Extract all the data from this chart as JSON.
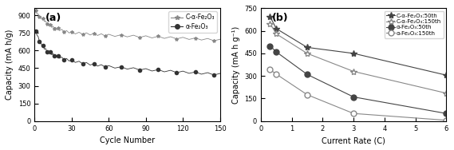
{
  "panel_a": {
    "title": "(a)",
    "xlabel": "Cycle Number",
    "ylabel": "Capacity (mA h/g)",
    "xlim": [
      0,
      150
    ],
    "ylim": [
      0,
      960
    ],
    "yticks": [
      0,
      150,
      300,
      450,
      600,
      750,
      900
    ],
    "xticks": [
      0,
      30,
      60,
      90,
      120,
      150
    ],
    "C_alpha": {
      "label": "C-α-Fe₂O₃",
      "color": "#888888",
      "marker": "*",
      "markersize": 3,
      "x": [
        1,
        2,
        3,
        4,
        5,
        6,
        7,
        8,
        9,
        10,
        11,
        12,
        13,
        14,
        15,
        16,
        17,
        18,
        19,
        20,
        22,
        24,
        26,
        28,
        30,
        33,
        36,
        39,
        42,
        45,
        48,
        51,
        54,
        57,
        60,
        65,
        70,
        75,
        80,
        85,
        90,
        95,
        100,
        105,
        110,
        115,
        120,
        125,
        130,
        135,
        140,
        145,
        150
      ],
      "y": [
        935,
        920,
        905,
        895,
        885,
        875,
        865,
        855,
        845,
        835,
        830,
        820,
        810,
        805,
        800,
        795,
        790,
        785,
        782,
        778,
        773,
        768,
        762,
        758,
        754,
        750,
        748,
        746,
        743,
        741,
        739,
        737,
        735,
        733,
        731,
        729,
        727,
        725,
        723,
        720,
        718,
        716,
        714,
        712,
        710,
        708,
        705,
        703,
        700,
        698,
        695,
        692,
        688
      ]
    },
    "alpha": {
      "label": "α-Fe₂O₃",
      "color": "#333333",
      "marker": "o",
      "markersize": 3,
      "x": [
        1,
        2,
        3,
        4,
        5,
        6,
        7,
        8,
        9,
        10,
        11,
        12,
        13,
        14,
        15,
        16,
        17,
        18,
        19,
        20,
        22,
        24,
        26,
        28,
        30,
        33,
        36,
        39,
        42,
        45,
        48,
        51,
        54,
        57,
        60,
        65,
        70,
        75,
        80,
        85,
        90,
        95,
        100,
        105,
        110,
        115,
        120,
        125,
        130,
        135,
        140,
        145,
        150
      ],
      "y": [
        760,
        740,
        710,
        685,
        665,
        648,
        633,
        620,
        610,
        600,
        592,
        585,
        578,
        572,
        566,
        561,
        556,
        551,
        547,
        543,
        536,
        530,
        524,
        519,
        514,
        507,
        501,
        495,
        490,
        485,
        480,
        476,
        472,
        468,
        464,
        459,
        454,
        450,
        446,
        442,
        438,
        434,
        430,
        427,
        424,
        420,
        417,
        414,
        410,
        407,
        404,
        400,
        397
      ]
    },
    "legend_loc": "upper right"
  },
  "panel_b": {
    "title": "(b)",
    "xlabel": "Current Rate (C)",
    "ylabel": "Capacity (mA h g⁻¹)",
    "xlim": [
      0,
      6
    ],
    "ylim": [
      0,
      750
    ],
    "yticks": [
      0,
      150,
      300,
      450,
      600,
      750
    ],
    "xticks": [
      0,
      1,
      2,
      3,
      4,
      5,
      6
    ],
    "series": {
      "C_alpha_50": {
        "label": "C-α-Fe₂O₃:50th",
        "color": "#444444",
        "marker": "*",
        "fillstyle": "full",
        "x": [
          0.3,
          0.5,
          1.5,
          3.0,
          6.0
        ],
        "y": [
          695,
          615,
          490,
          450,
          305
        ]
      },
      "C_alpha_150": {
        "label": "C-α-Fe₂O₃:150th",
        "color": "#888888",
        "marker": "*",
        "fillstyle": "none",
        "x": [
          0.3,
          0.5,
          1.5,
          3.0,
          6.0
        ],
        "y": [
          648,
          580,
          450,
          330,
          185
        ]
      },
      "alpha_50": {
        "label": "α-Fe₂O₃:50th",
        "color": "#444444",
        "marker": "o",
        "fillstyle": "full",
        "x": [
          0.3,
          0.5,
          1.5,
          3.0,
          6.0
        ],
        "y": [
          500,
          460,
          310,
          160,
          50
        ]
      },
      "alpha_150": {
        "label": "α-Fe₂O₃:150th",
        "color": "#888888",
        "marker": "o",
        "fillstyle": "none",
        "x": [
          0.3,
          0.5,
          1.5,
          3.0,
          6.0
        ],
        "y": [
          342,
          312,
          175,
          50,
          5
        ]
      }
    },
    "legend_loc": "upper right"
  }
}
